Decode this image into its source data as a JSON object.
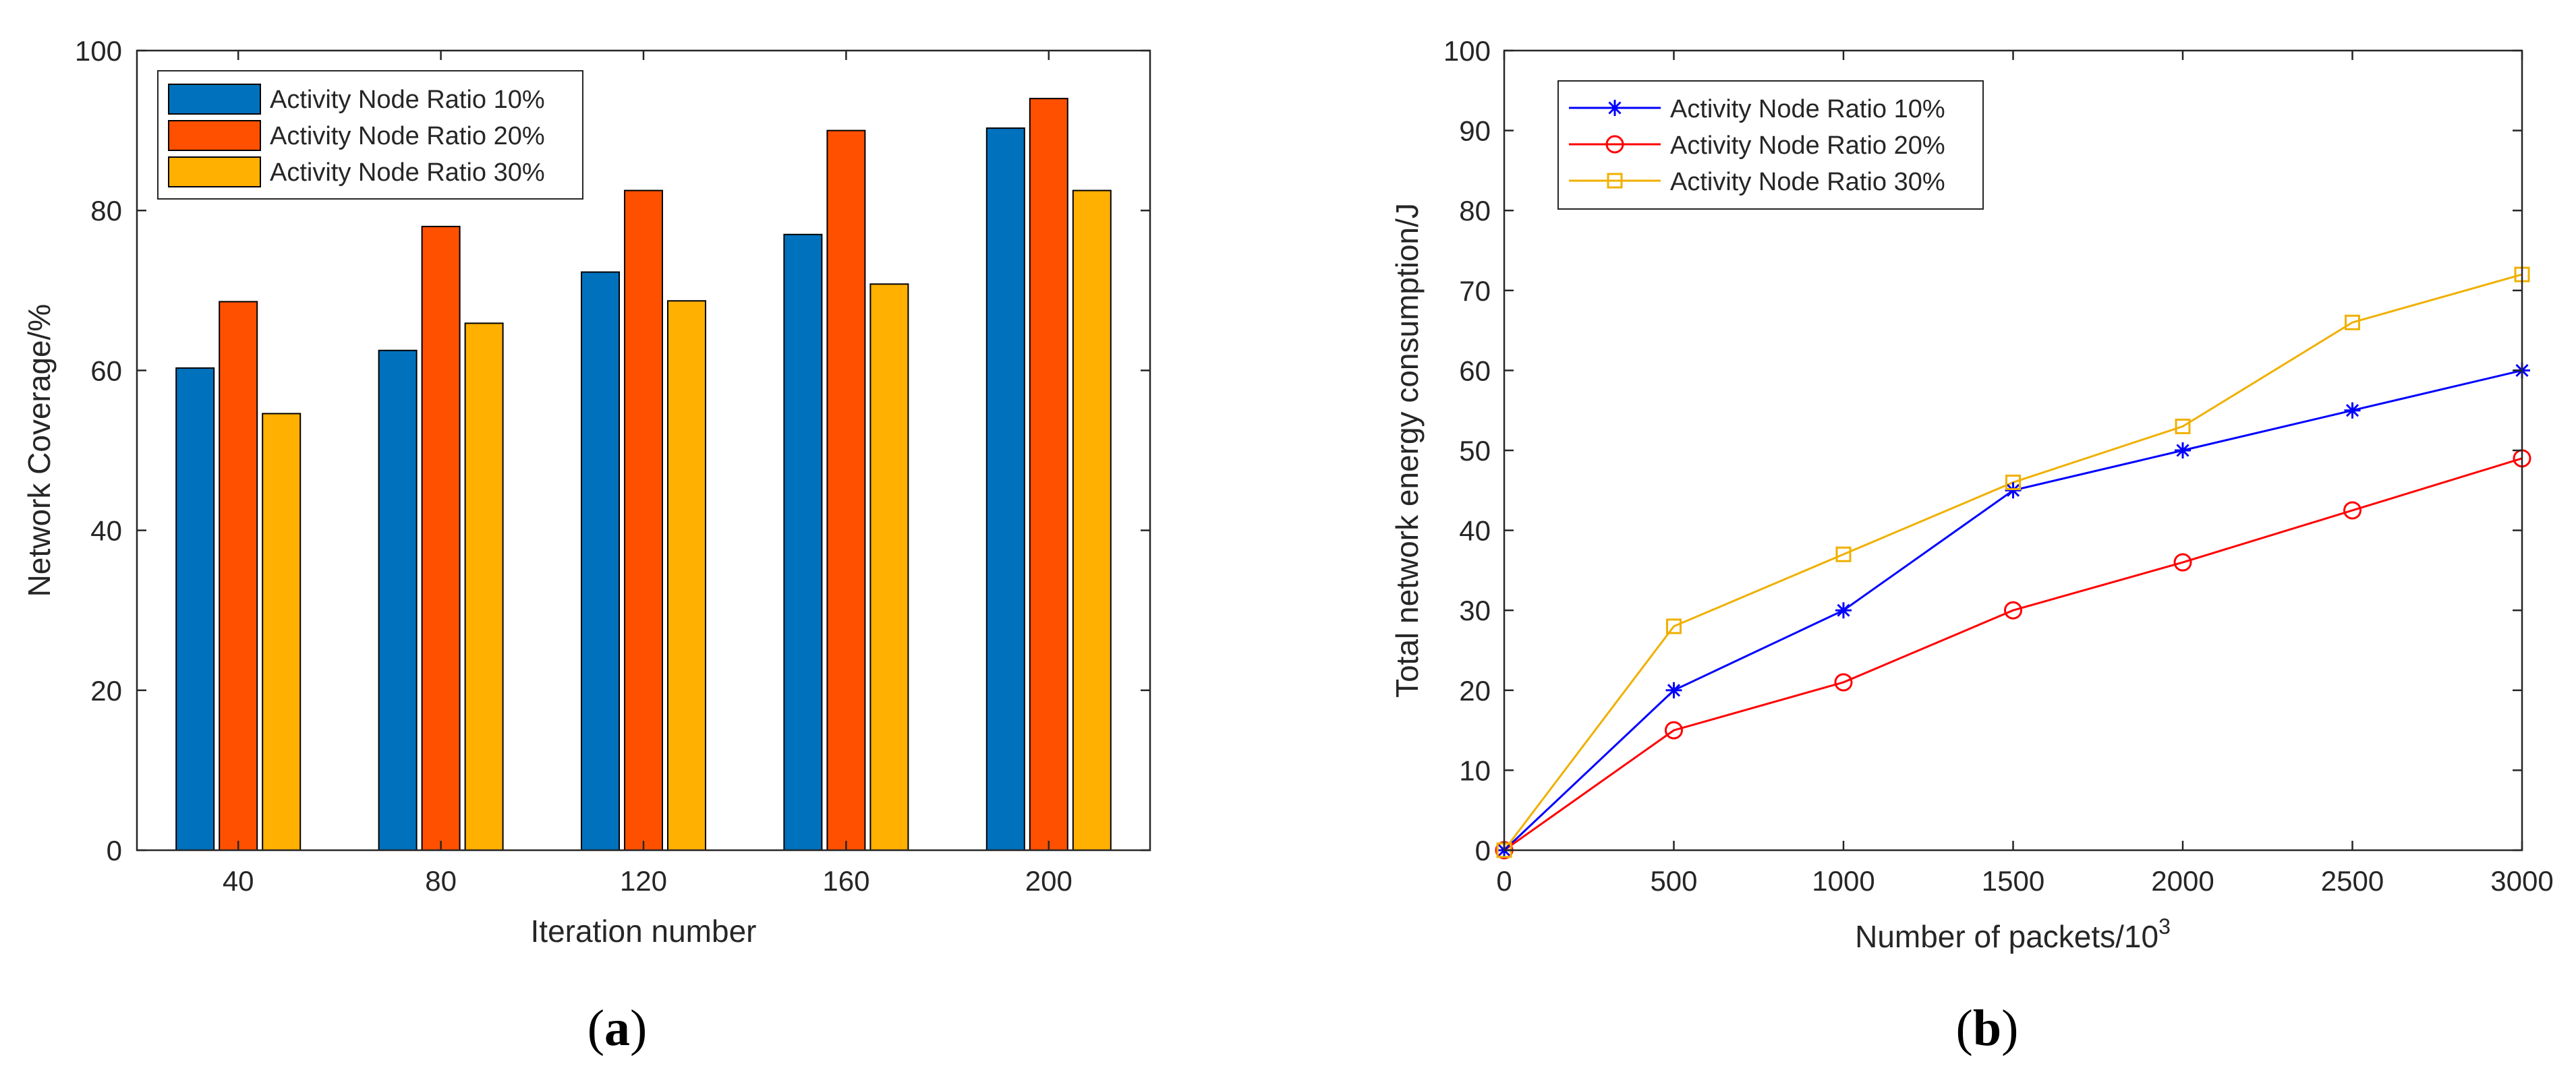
{
  "figure": {
    "panels": [
      {
        "label": "(a)",
        "label_parts": [
          "(",
          "a",
          ")"
        ]
      },
      {
        "label": "(b)",
        "label_parts": [
          "(",
          "b",
          ")"
        ]
      }
    ]
  },
  "chart_data": [
    {
      "type": "bar",
      "title": "",
      "xlabel": "Iteration number",
      "ylabel": "Network Coverage/%",
      "categories": [
        "40",
        "80",
        "120",
        "160",
        "200"
      ],
      "ylim": [
        0,
        100
      ],
      "yticks": [
        0,
        20,
        40,
        60,
        80,
        100
      ],
      "grid": false,
      "legend_position": "top-left",
      "series": [
        {
          "name": "Activity Node Ratio 10%",
          "color": "#0072BD",
          "values": [
            60.3,
            62.5,
            72.3,
            77,
            90.3
          ]
        },
        {
          "name": "Activity Node Ratio 20%",
          "color": "#FF5000",
          "values": [
            68.6,
            78,
            82.5,
            90,
            94
          ]
        },
        {
          "name": "Activity Node Ratio 30%",
          "color": "#FFB000",
          "values": [
            54.6,
            65.9,
            68.7,
            70.8,
            82.5
          ]
        }
      ]
    },
    {
      "type": "line",
      "title": "",
      "xlabel": "Number of packets/10",
      "xlabel_superscript": "3",
      "ylabel": "Total network energy consumption/J",
      "x": [
        0,
        500,
        1000,
        1500,
        2000,
        2500,
        3000
      ],
      "xlim": [
        0,
        3000
      ],
      "xticks": [
        0,
        500,
        1000,
        1500,
        2000,
        2500,
        3000
      ],
      "ylim": [
        0,
        100
      ],
      "yticks": [
        0,
        10,
        20,
        30,
        40,
        50,
        60,
        70,
        80,
        90,
        100
      ],
      "grid": false,
      "legend_position": "top-left",
      "series": [
        {
          "name": "Activity Node Ratio 10%",
          "color": "#0000FF",
          "marker": "asterisk",
          "values": [
            0,
            20,
            30,
            45,
            50,
            55,
            60
          ]
        },
        {
          "name": "Activity Node Ratio 20%",
          "color": "#FF0000",
          "marker": "circle",
          "values": [
            0,
            15,
            21,
            30,
            36,
            42.5,
            49
          ]
        },
        {
          "name": "Activity Node Ratio 30%",
          "color": "#F0B000",
          "marker": "square",
          "values": [
            0,
            28,
            37,
            46,
            53,
            66,
            72
          ]
        }
      ]
    }
  ]
}
